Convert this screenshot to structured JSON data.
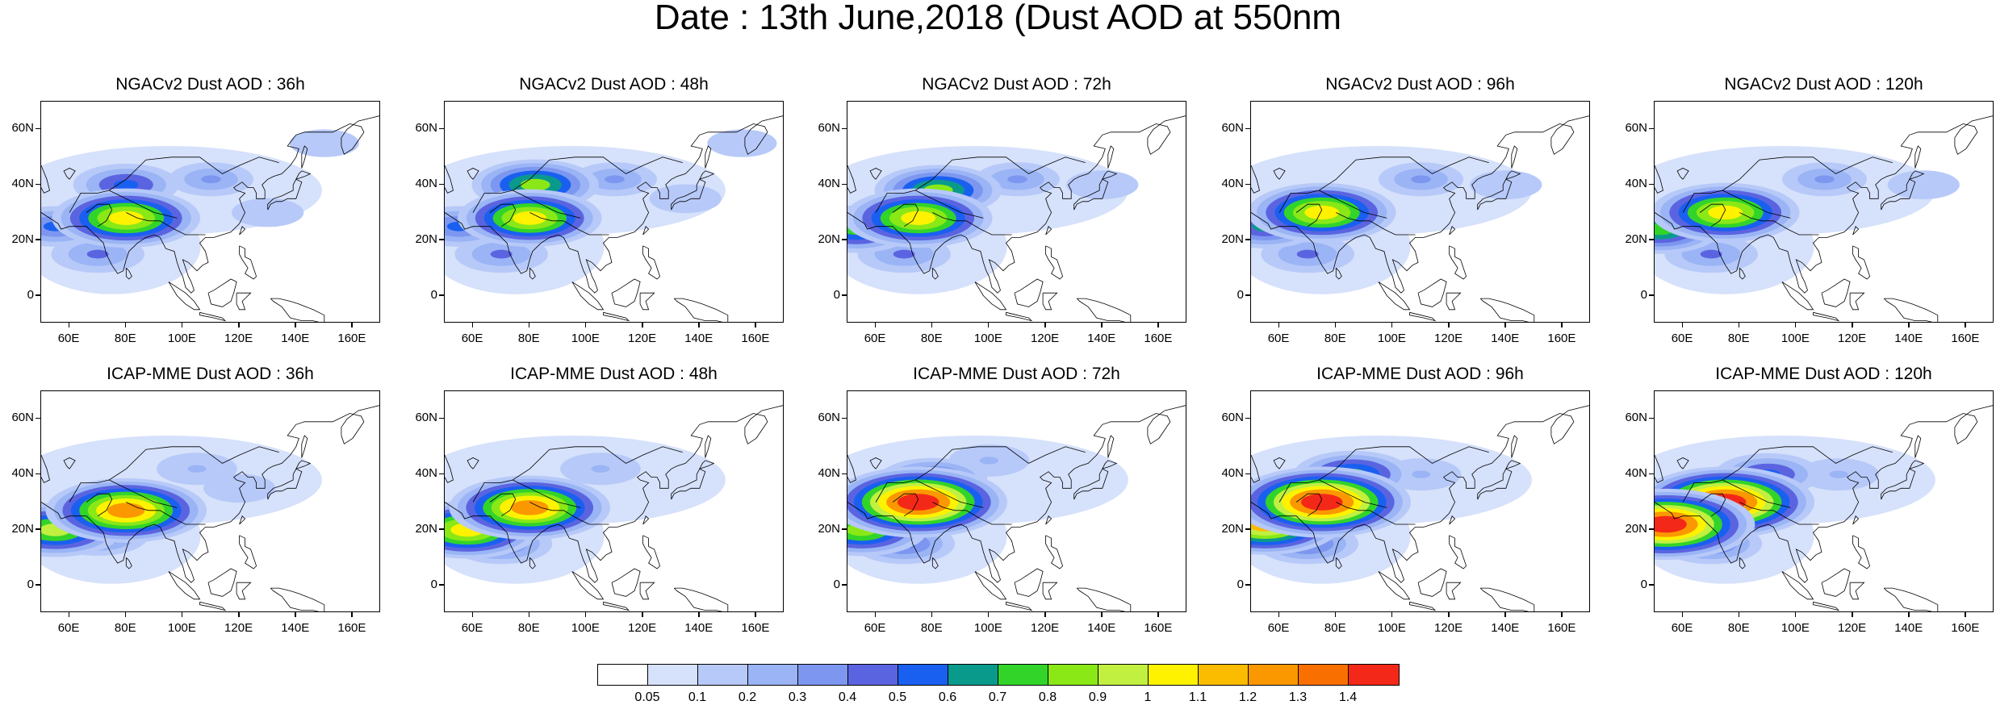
{
  "title": "Date : 13th June,2018 (Dust AOD at 550nm",
  "lat_ticks": [
    "60N",
    "40N",
    "20N",
    "0"
  ],
  "lon_ticks": [
    "60E",
    "80E",
    "100E",
    "120E",
    "140E",
    "160E"
  ],
  "map_extent": {
    "lon_range": [
      50,
      170
    ],
    "lat_range": [
      -10,
      70
    ]
  },
  "rows": [
    {
      "model": "NGACv2",
      "panels": [
        {
          "title": "NGACv2 Dust AOD : 36h",
          "lead_hours": 36,
          "dust_plumes": [
            {
              "lon": 80,
              "lat": 28,
              "aod": 1.05
            },
            {
              "lon": 80,
              "lat": 40,
              "aod": 0.55
            },
            {
              "lon": 55,
              "lat": 25,
              "aod": 0.5
            },
            {
              "lon": 70,
              "lat": 15,
              "aod": 0.4
            },
            {
              "lon": 110,
              "lat": 42,
              "aod": 0.3
            },
            {
              "lon": 130,
              "lat": 30,
              "aod": 0.15
            },
            {
              "lon": 150,
              "lat": 55,
              "aod": 0.12
            }
          ]
        },
        {
          "title": "NGACv2 Dust AOD : 48h",
          "lead_hours": 48,
          "dust_plumes": [
            {
              "lon": 80,
              "lat": 28,
              "aod": 1.0
            },
            {
              "lon": 82,
              "lat": 40,
              "aod": 0.8
            },
            {
              "lon": 55,
              "lat": 25,
              "aod": 0.5
            },
            {
              "lon": 70,
              "lat": 15,
              "aod": 0.4
            },
            {
              "lon": 110,
              "lat": 42,
              "aod": 0.3
            },
            {
              "lon": 135,
              "lat": 35,
              "aod": 0.15
            },
            {
              "lon": 155,
              "lat": 55,
              "aod": 0.12
            }
          ]
        },
        {
          "title": "NGACv2 Dust AOD : 72h",
          "lead_hours": 72,
          "dust_plumes": [
            {
              "lon": 75,
              "lat": 28,
              "aod": 1.05
            },
            {
              "lon": 82,
              "lat": 38,
              "aod": 0.8
            },
            {
              "lon": 53,
              "lat": 24,
              "aod": 0.7
            },
            {
              "lon": 70,
              "lat": 15,
              "aod": 0.4
            },
            {
              "lon": 110,
              "lat": 42,
              "aod": 0.3
            },
            {
              "lon": 140,
              "lat": 40,
              "aod": 0.15
            }
          ]
        },
        {
          "title": "NGACv2 Dust AOD : 96h",
          "lead_hours": 96,
          "dust_plumes": [
            {
              "lon": 75,
              "lat": 30,
              "aod": 1.05
            },
            {
              "lon": 55,
              "lat": 25,
              "aod": 0.6
            },
            {
              "lon": 70,
              "lat": 15,
              "aod": 0.4
            },
            {
              "lon": 110,
              "lat": 42,
              "aod": 0.3
            },
            {
              "lon": 140,
              "lat": 40,
              "aod": 0.15
            }
          ]
        },
        {
          "title": "NGACv2 Dust AOD : 120h",
          "lead_hours": 120,
          "dust_plumes": [
            {
              "lon": 75,
              "lat": 30,
              "aod": 1.05
            },
            {
              "lon": 52,
              "lat": 24,
              "aod": 0.75
            },
            {
              "lon": 70,
              "lat": 15,
              "aod": 0.4
            },
            {
              "lon": 110,
              "lat": 42,
              "aod": 0.3
            },
            {
              "lon": 145,
              "lat": 40,
              "aod": 0.15
            }
          ]
        }
      ]
    },
    {
      "model": "ICAP-MME",
      "panels": [
        {
          "title": "ICAP-MME Dust AOD : 36h",
          "lead_hours": 36,
          "dust_plumes": [
            {
              "lon": 80,
              "lat": 27,
              "aod": 1.2
            },
            {
              "lon": 55,
              "lat": 20,
              "aod": 0.9
            },
            {
              "lon": 70,
              "lat": 18,
              "aod": 0.5
            },
            {
              "lon": 105,
              "lat": 42,
              "aod": 0.25
            },
            {
              "lon": 120,
              "lat": 35,
              "aod": 0.15
            }
          ]
        },
        {
          "title": "ICAP-MME Dust AOD : 48h",
          "lead_hours": 48,
          "dust_plumes": [
            {
              "lon": 80,
              "lat": 28,
              "aod": 1.2
            },
            {
              "lon": 58,
              "lat": 20,
              "aod": 1.0
            },
            {
              "lon": 70,
              "lat": 15,
              "aod": 0.5
            },
            {
              "lon": 105,
              "lat": 42,
              "aod": 0.25
            }
          ]
        },
        {
          "title": "ICAP-MME Dust AOD : 72h",
          "lead_hours": 72,
          "dust_plumes": [
            {
              "lon": 75,
              "lat": 30,
              "aod": 1.4
            },
            {
              "lon": 55,
              "lat": 20,
              "aod": 0.85
            },
            {
              "lon": 80,
              "lat": 38,
              "aod": 0.6
            },
            {
              "lon": 70,
              "lat": 15,
              "aod": 0.5
            },
            {
              "lon": 100,
              "lat": 45,
              "aod": 0.25
            }
          ]
        },
        {
          "title": "ICAP-MME Dust AOD : 96h",
          "lead_hours": 96,
          "dust_plumes": [
            {
              "lon": 75,
              "lat": 30,
              "aod": 1.4
            },
            {
              "lon": 55,
              "lat": 22,
              "aod": 1.1
            },
            {
              "lon": 86,
              "lat": 40,
              "aod": 0.7
            },
            {
              "lon": 70,
              "lat": 15,
              "aod": 0.5
            },
            {
              "lon": 110,
              "lat": 40,
              "aod": 0.25
            }
          ]
        },
        {
          "title": "ICAP-MME Dust AOD : 120h",
          "lead_hours": 120,
          "dust_plumes": [
            {
              "lon": 75,
              "lat": 30,
              "aod": 1.4
            },
            {
              "lon": 54,
              "lat": 22,
              "aod": 1.4
            },
            {
              "lon": 90,
              "lat": 40,
              "aod": 0.55
            },
            {
              "lon": 70,
              "lat": 15,
              "aod": 0.5
            },
            {
              "lon": 115,
              "lat": 40,
              "aod": 0.25
            }
          ]
        }
      ]
    }
  ],
  "colorbar": {
    "labels": [
      "0.05",
      "0.1",
      "0.2",
      "0.3",
      "0.4",
      "0.5",
      "0.6",
      "0.7",
      "0.8",
      "0.9",
      "1",
      "1.1",
      "1.2",
      "1.3",
      "1.4"
    ],
    "colors": [
      "#ffffff",
      "#d6e1fb",
      "#b7c9f8",
      "#9ab4f5",
      "#7d97f0",
      "#5b64e0",
      "#1a60f0",
      "#0a9a8c",
      "#32d42a",
      "#8ae816",
      "#c1f040",
      "#fff200",
      "#fbbc00",
      "#fb9800",
      "#f97000",
      "#f42818"
    ]
  }
}
